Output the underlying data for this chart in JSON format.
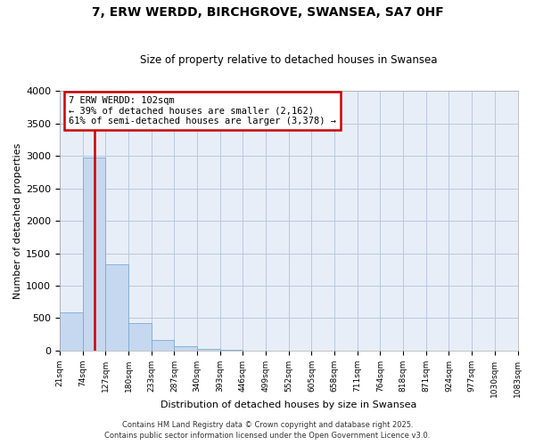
{
  "title": "7, ERW WERDD, BIRCHGROVE, SWANSEA, SA7 0HF",
  "subtitle": "Size of property relative to detached houses in Swansea",
  "xlabel": "Distribution of detached houses by size in Swansea",
  "ylabel": "Number of detached properties",
  "bar_color": "#c5d8f0",
  "bar_edge_color": "#7aaad4",
  "background_color": "#e8eef8",
  "grid_color": "#b8c8e0",
  "tick_labels": [
    "21sqm",
    "74sqm",
    "127sqm",
    "180sqm",
    "233sqm",
    "287sqm",
    "340sqm",
    "393sqm",
    "446sqm",
    "499sqm",
    "552sqm",
    "605sqm",
    "658sqm",
    "711sqm",
    "764sqm",
    "818sqm",
    "871sqm",
    "924sqm",
    "977sqm",
    "1030sqm",
    "1083sqm"
  ],
  "bar_values": [
    590,
    2970,
    1330,
    420,
    165,
    75,
    30,
    20,
    5,
    0,
    0,
    0,
    0,
    0,
    0,
    0,
    0,
    0,
    0,
    0
  ],
  "ylim": [
    0,
    4000
  ],
  "yticks": [
    0,
    500,
    1000,
    1500,
    2000,
    2500,
    3000,
    3500,
    4000
  ],
  "vline_color": "#cc0000",
  "vline_pos": 1.528,
  "annotation_title": "7 ERW WERDD: 102sqm",
  "annotation_line1": "← 39% of detached houses are smaller (2,162)",
  "annotation_line2": "61% of semi-detached houses are larger (3,378) →",
  "annotation_box_color": "#cc0000",
  "footer_line1": "Contains HM Land Registry data © Crown copyright and database right 2025.",
  "footer_line2": "Contains public sector information licensed under the Open Government Licence v3.0."
}
